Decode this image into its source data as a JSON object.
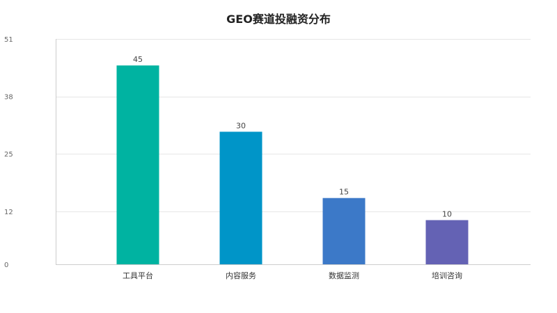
{
  "chart_data": {
    "type": "bar",
    "title": "GEO赛道投融资分布",
    "xlabel": "",
    "ylabel": "",
    "categories": [
      "工具平台",
      "内容服务",
      "数据监测",
      "培训咨询"
    ],
    "values": [
      45,
      30,
      15,
      10
    ],
    "data_labels": [
      "45",
      "30",
      "15",
      "10"
    ],
    "colors": [
      "#00B3A1",
      "#0095C8",
      "#3C79C8",
      "#6462B4"
    ],
    "y_ticks": [
      0,
      12,
      25,
      38,
      51
    ],
    "y_tick_labels": [
      "0",
      "12",
      "25",
      "38",
      "51"
    ],
    "ylim": [
      0,
      51
    ],
    "grid": true,
    "legend": "none"
  }
}
